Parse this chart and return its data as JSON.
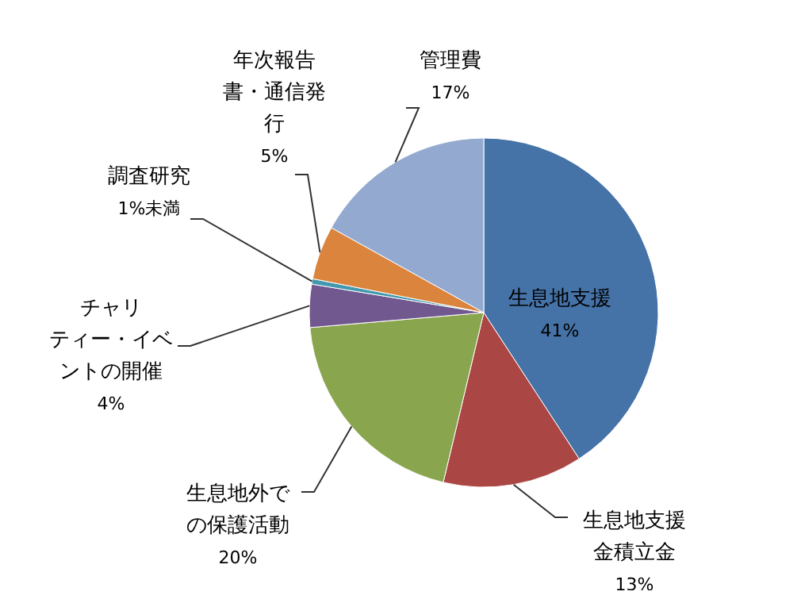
{
  "chart_data": {
    "type": "pie",
    "categories": [
      "生息地支援",
      "生息地支援金積立金",
      "生息地外での保護活動",
      "チャリティー・イベントの開催",
      "調査研究",
      "年次報告書・通信発行",
      "管理費"
    ],
    "values": [
      41,
      13,
      20,
      4,
      0.5,
      5,
      17
    ],
    "value_labels": [
      "41%",
      "13%",
      "20%",
      "4%",
      "1%未満",
      "5%",
      "17%"
    ],
    "colors": [
      "#4572a7",
      "#aa4643",
      "#89a54e",
      "#71588f",
      "#4198af",
      "#db843d",
      "#93a9cf"
    ],
    "legend": false
  }
}
